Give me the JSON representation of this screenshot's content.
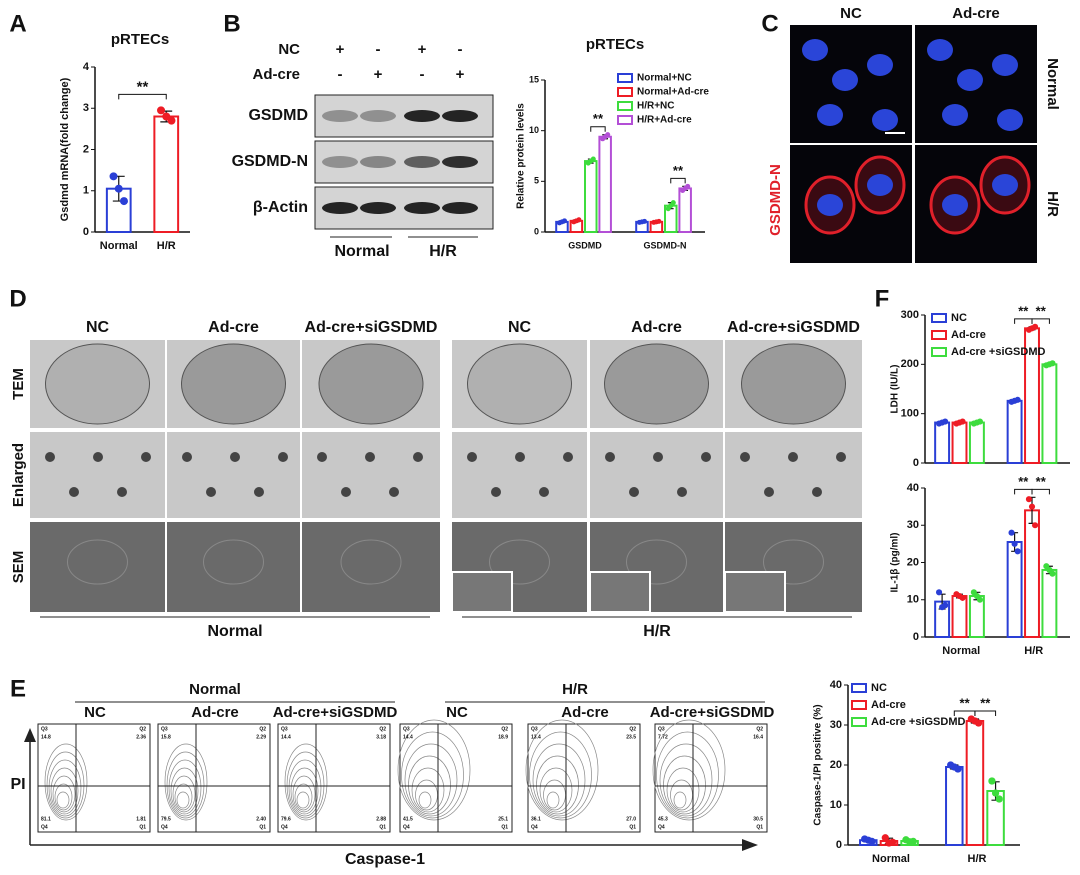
{
  "panels": [
    "A",
    "B",
    "C",
    "D",
    "E",
    "F"
  ],
  "chart_data": [
    {
      "type": "bar",
      "title": "pRTECs",
      "y_label": "Gsdmd mRNA(fold change)",
      "categories": [
        "Normal",
        "H/R"
      ],
      "values": [
        1.05,
        2.8
      ],
      "errors": [
        0.3,
        0.13
      ],
      "points": [
        [
          1.35,
          1.05,
          0.75
        ],
        [
          2.95,
          2.8,
          2.7
        ]
      ],
      "colors": [
        "#2a3fd6",
        "#ee1c25"
      ],
      "ylim": [
        0,
        4
      ],
      "yticks": [
        0,
        1,
        2,
        3,
        4
      ],
      "annotations": [
        "**"
      ]
    },
    {
      "type": "grouped_bar",
      "title": "pRTECs",
      "y_label": "Relative protein levels",
      "categories": [
        "GSDMD",
        "GSDMD-N"
      ],
      "ylim": [
        0,
        15
      ],
      "yticks": [
        0,
        5,
        10,
        15
      ],
      "annotations": [
        "**",
        "**"
      ],
      "series": [
        {
          "name": "Normal+NC",
          "color": "#2a3fd6",
          "values": [
            1.0,
            1.0
          ],
          "errors": [
            0.1,
            0.05
          ],
          "points": [
            [
              0.9,
              1.0,
              1.1
            ],
            [
              0.95,
              1.0,
              1.05
            ]
          ]
        },
        {
          "name": "Normal+Ad-cre",
          "color": "#ee1c25",
          "values": [
            1.1,
            1.0
          ],
          "errors": [
            0.1,
            0.05
          ],
          "points": [
            [
              1.0,
              1.1,
              1.2
            ],
            [
              0.95,
              1.0,
              1.05
            ]
          ]
        },
        {
          "name": "H/R+NC",
          "color": "#3ddc3d",
          "values": [
            7.0,
            2.6
          ],
          "errors": [
            0.2,
            0.3
          ],
          "points": [
            [
              6.8,
              7.0,
              7.2
            ],
            [
              2.3,
              2.6,
              2.9
            ]
          ]
        },
        {
          "name": "H/R+Ad-cre",
          "color": "#b34fd6",
          "values": [
            9.4,
            4.3
          ],
          "errors": [
            0.2,
            0.2
          ],
          "points": [
            [
              9.2,
              9.4,
              9.6
            ],
            [
              4.1,
              4.3,
              4.5
            ]
          ]
        }
      ]
    },
    {
      "type": "grouped_bar",
      "y_label": "LDH (IU/L)",
      "ylim": [
        0,
        300
      ],
      "yticks": [
        0,
        100,
        200,
        300
      ],
      "annotations": [
        "**",
        "**"
      ],
      "series": [
        {
          "name": "NC",
          "color": "#2a3fd6",
          "values": [
            82,
            126
          ],
          "errors": [
            2,
            2
          ],
          "points": [
            [
              80,
              82,
              84
            ],
            [
              124,
              126,
              128
            ]
          ]
        },
        {
          "name": "Ad-cre",
          "color": "#ee1c25",
          "values": [
            82,
            273
          ],
          "errors": [
            2,
            3
          ],
          "points": [
            [
              80,
              82,
              84
            ],
            [
              270,
              273,
              276
            ]
          ]
        },
        {
          "name": "Ad-cre +siGSDMD",
          "color": "#3ddc3d",
          "values": [
            82,
            200
          ],
          "errors": [
            2,
            2
          ],
          "points": [
            [
              80,
              82,
              84
            ],
            [
              198,
              200,
              202
            ]
          ]
        }
      ]
    },
    {
      "type": "grouped_bar",
      "y_label": "IL-1β (pg/ml)",
      "categories": [
        "Normal",
        "H/R"
      ],
      "ylim": [
        0,
        40
      ],
      "yticks": [
        0,
        10,
        20,
        30,
        40
      ],
      "annotations": [
        "**",
        "**"
      ],
      "series": [
        {
          "color": "#2a3fd6",
          "values": [
            9.5,
            25.5
          ],
          "errors": [
            2,
            2.5
          ],
          "points": [
            [
              12,
              8,
              8.5
            ],
            [
              28,
              25,
              23
            ]
          ]
        },
        {
          "color": "#ee1c25",
          "values": [
            11,
            34
          ],
          "errors": [
            0.5,
            3.5
          ],
          "points": [
            [
              11.5,
              11,
              10.5
            ],
            [
              37,
              35,
              30
            ]
          ]
        },
        {
          "color": "#3ddc3d",
          "values": [
            11,
            18
          ],
          "errors": [
            1,
            1
          ],
          "points": [
            [
              12,
              11,
              10
            ],
            [
              19,
              18,
              17
            ]
          ]
        }
      ]
    },
    {
      "type": "grouped_bar",
      "y_label": "Caspase-1/PI positive (%)",
      "categories": [
        "Normal",
        "H/R"
      ],
      "ylim": [
        0,
        40
      ],
      "yticks": [
        0,
        10,
        20,
        30,
        40
      ],
      "annotations": [
        "**",
        "**"
      ],
      "series": [
        {
          "name": "NC",
          "color": "#2a3fd6",
          "values": [
            1.2,
            19.5
          ],
          "errors": [
            0.3,
            0.5
          ],
          "points": [
            [
              1.5,
              1.2,
              0.9
            ],
            [
              20,
              19.5,
              19
            ]
          ]
        },
        {
          "name": "Ad-cre",
          "color": "#ee1c25",
          "values": [
            1,
            31
          ],
          "errors": [
            0.7,
            0.5
          ],
          "points": [
            [
              1.8,
              0.5,
              0.7
            ],
            [
              31.5,
              31,
              30.5
            ]
          ]
        },
        {
          "name": "Ad-cre +siGSDMD",
          "color": "#3ddc3d",
          "values": [
            1,
            13.5
          ],
          "errors": [
            0.3,
            2.3
          ],
          "points": [
            [
              1.3,
              0.8,
              0.9
            ],
            [
              16,
              13,
              11.5
            ]
          ]
        }
      ]
    }
  ],
  "blot": {
    "rows": [
      "NC",
      "Ad-cre"
    ],
    "signs": [
      [
        "+",
        "-",
        "+",
        "-"
      ],
      [
        "-",
        "+",
        "-",
        "+"
      ]
    ],
    "bands": [
      "GSDMD",
      "GSDMD-N",
      "β-Actin"
    ],
    "groups": [
      "Normal",
      "H/R"
    ]
  },
  "if": {
    "columns": [
      "NC",
      "Ad-cre"
    ],
    "rows": [
      "Normal",
      "H/R"
    ],
    "stain": "GSDMD-N"
  },
  "em": {
    "columns": [
      "NC",
      "Ad-cre",
      "Ad-cre+siGSDMD",
      "NC",
      "Ad-cre",
      "Ad-cre+siGSDMD"
    ],
    "rows": [
      "TEM",
      "Enlarged",
      "SEM"
    ],
    "groups": [
      "Normal",
      "H/R"
    ]
  },
  "flow": {
    "groups": [
      "Normal",
      "H/R"
    ],
    "columns": [
      "NC",
      "Ad-cre",
      "Ad-cre+siGSDMD",
      "NC",
      "Ad-cre",
      "Ad-cre+siGSDMD"
    ],
    "quadrant_names": [
      "Q3",
      "Q2",
      "Q4",
      "Q1"
    ],
    "quadrants": [
      [
        "14.8",
        "2.36",
        "81.1",
        "1.81"
      ],
      [
        "15.8",
        "2.29",
        "79.5",
        "2.40"
      ],
      [
        "14.4",
        "3.18",
        "79.6",
        "2.88"
      ],
      [
        "14.4",
        "18.9",
        "41.5",
        "25.1"
      ],
      [
        "13.4",
        "23.5",
        "36.1",
        "27.0"
      ],
      [
        "7.72",
        "16.4",
        "45.3",
        "30.5"
      ]
    ],
    "y_label": "PI",
    "x_label": "Caspase-1"
  }
}
